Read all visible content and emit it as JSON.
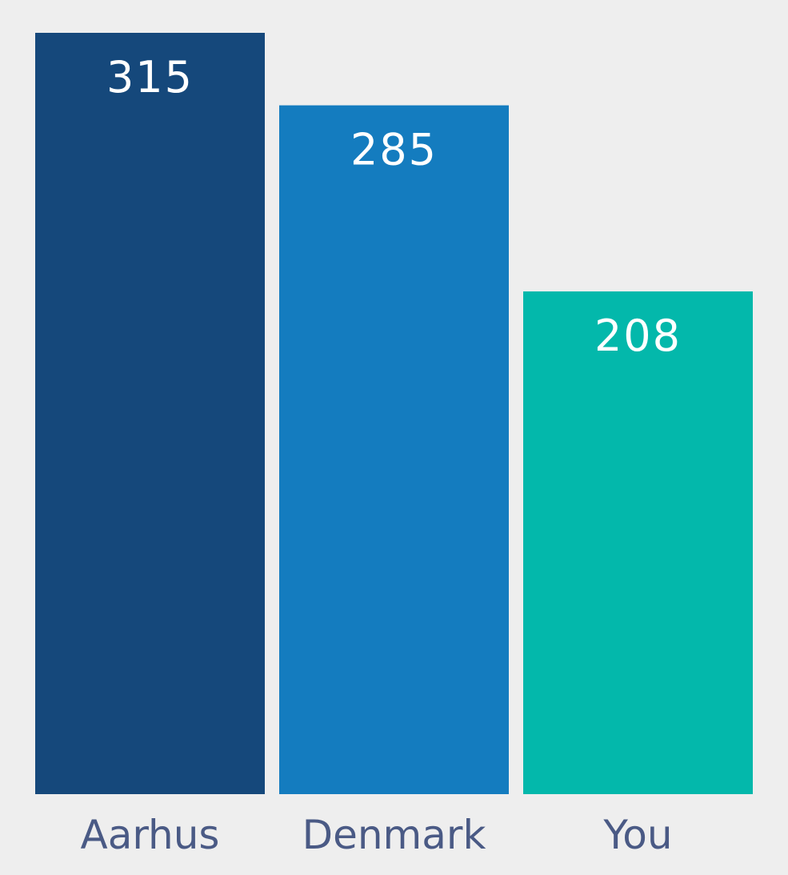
{
  "chart_data": {
    "type": "bar",
    "categories": [
      "Aarhus",
      "Denmark",
      "You"
    ],
    "values": [
      315,
      285,
      208
    ],
    "colors": [
      "#15487b",
      "#147cbf",
      "#03b8ab"
    ],
    "ylim": [
      0,
      315
    ],
    "grid": false,
    "legend": "none"
  }
}
